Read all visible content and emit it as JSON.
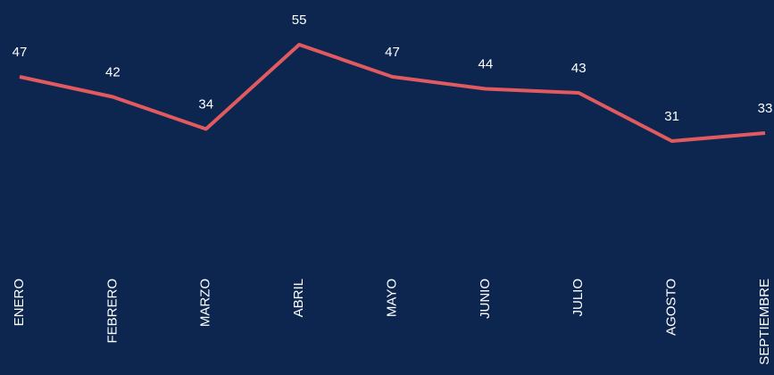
{
  "chart_data": {
    "type": "line",
    "categories": [
      "ENERO",
      "FEBRERO",
      "MARZO",
      "ABRIL",
      "MAYO",
      "JUNIO",
      "JULIO",
      "AGOSTO",
      "SEPTIEMBRE"
    ],
    "series": [
      {
        "color": "#e05a5f",
        "values": [
          47,
          42,
          34,
          55,
          47,
          44,
          43,
          31,
          33
        ]
      }
    ]
  }
}
